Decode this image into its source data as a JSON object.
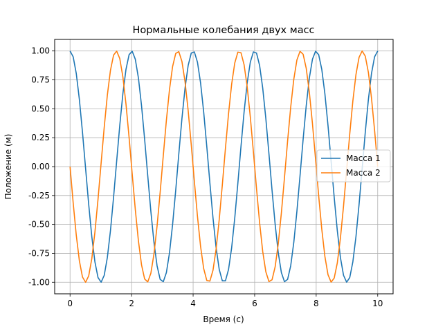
{
  "chart_data": {
    "type": "line",
    "title": "Нормальные колебания двух масс",
    "xlabel": "Время (с)",
    "ylabel": "Положение (м)",
    "xlim": [
      -0.5,
      10.5
    ],
    "ylim": [
      -1.1,
      1.1
    ],
    "xticks": [
      "0",
      "2",
      "4",
      "6",
      "8",
      "10"
    ],
    "yticks": [
      "-1.00",
      "-0.75",
      "-0.50",
      "-0.25",
      "0.00",
      "0.25",
      "0.50",
      "0.75",
      "1.00"
    ],
    "grid": true,
    "legend_position": "center-right",
    "series": [
      {
        "name": "Масса 1",
        "color": "#1f77b4",
        "function": "cos",
        "angular_frequency": 3.14159,
        "t_start": 0,
        "t_end": 10,
        "samples": 100
      },
      {
        "name": "Масса 2",
        "color": "#ff7f0e",
        "function": "-sin",
        "angular_frequency": 3.14159,
        "t_start": 0,
        "t_end": 10,
        "samples": 100
      }
    ]
  }
}
